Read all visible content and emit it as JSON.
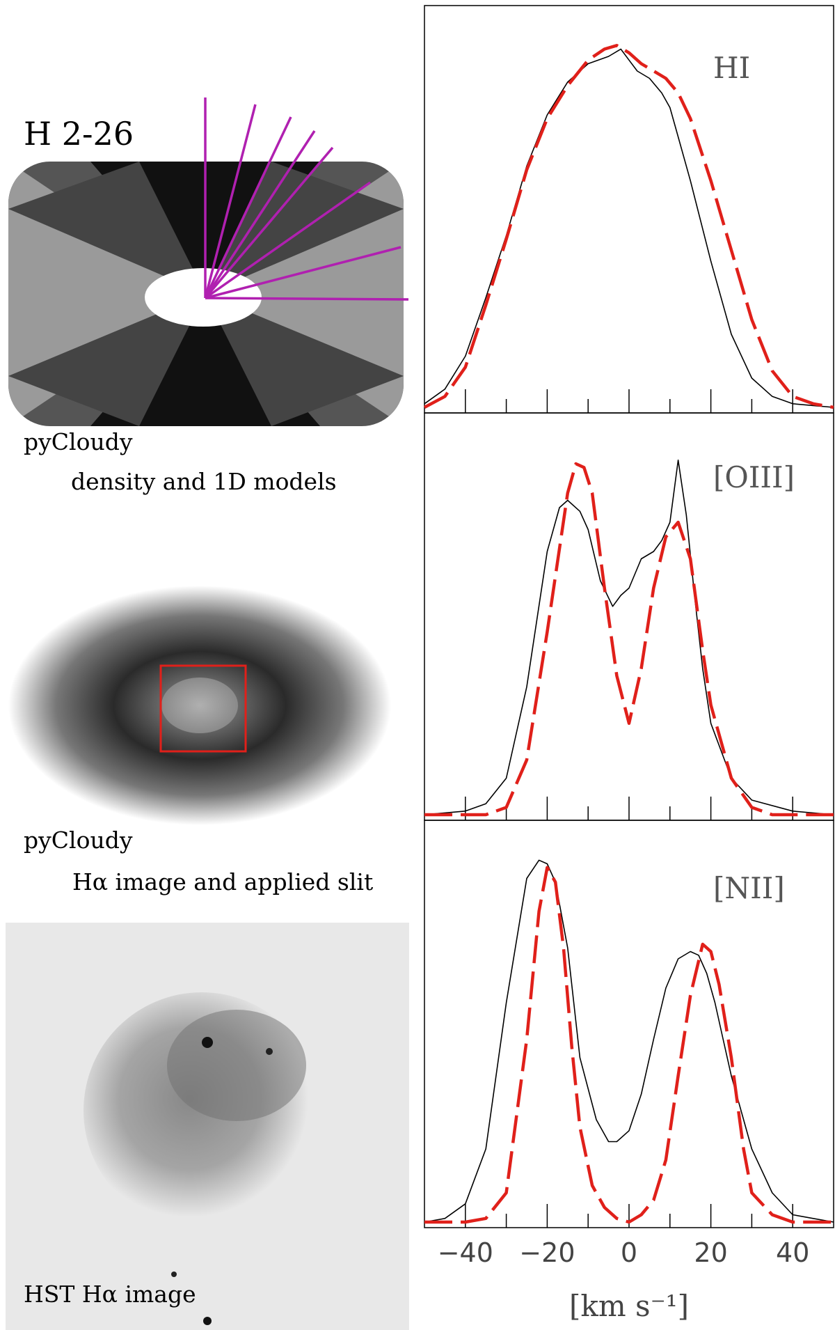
{
  "labels": {
    "title": "H 2-26",
    "density_caption_line1": "pyCloudy",
    "density_caption_line2": "density and 1D models",
    "halpha_caption_line1": "pyCloudy",
    "halpha_caption_line2": "Hα image and applied slit",
    "hst_caption": "HST Hα image"
  },
  "colors": {
    "observed": "#000000",
    "model": "#e0201a",
    "rays": "#b020b0",
    "slit": "#e0201a"
  },
  "chart_data": [
    {
      "type": "line",
      "title": "HI",
      "xlim": [
        -50,
        50
      ],
      "ylim": [
        0,
        1.0
      ],
      "series": [
        {
          "style": "observed-solid",
          "x": [
            -50,
            -45,
            -40,
            -35,
            -30,
            -25,
            -20,
            -15,
            -10,
            -5,
            -2,
            0,
            2,
            5,
            8,
            10,
            12,
            15,
            20,
            25,
            30,
            35,
            40,
            45,
            50
          ],
          "y": [
            0.01,
            0.05,
            0.14,
            0.3,
            0.47,
            0.66,
            0.8,
            0.89,
            0.94,
            0.96,
            0.98,
            0.95,
            0.92,
            0.9,
            0.86,
            0.82,
            0.74,
            0.62,
            0.4,
            0.2,
            0.08,
            0.03,
            0.01,
            0.005,
            0.0
          ]
        },
        {
          "style": "model-dashed",
          "x": [
            -50,
            -45,
            -40,
            -35,
            -30,
            -25,
            -20,
            -15,
            -10,
            -6,
            -3,
            0,
            3,
            6,
            9,
            12,
            15,
            20,
            25,
            30,
            35,
            40,
            45,
            50
          ],
          "y": [
            0.0,
            0.03,
            0.11,
            0.28,
            0.46,
            0.65,
            0.79,
            0.88,
            0.95,
            0.98,
            0.99,
            0.97,
            0.94,
            0.92,
            0.9,
            0.86,
            0.79,
            0.62,
            0.43,
            0.24,
            0.1,
            0.03,
            0.01,
            0.0
          ]
        }
      ]
    },
    {
      "type": "line",
      "title": "[OIII]",
      "xlim": [
        -50,
        50
      ],
      "ylim": [
        0,
        1.0
      ],
      "series": [
        {
          "style": "observed-solid",
          "x": [
            -50,
            -40,
            -35,
            -30,
            -25,
            -20,
            -17,
            -15,
            -12,
            -10,
            -7,
            -4,
            -2,
            0,
            3,
            6,
            8,
            10,
            12,
            14,
            16,
            18,
            20,
            25,
            30,
            40,
            50
          ],
          "y": [
            0.0,
            0.01,
            0.03,
            0.1,
            0.35,
            0.72,
            0.84,
            0.86,
            0.83,
            0.78,
            0.64,
            0.57,
            0.6,
            0.62,
            0.7,
            0.72,
            0.75,
            0.8,
            0.97,
            0.82,
            0.6,
            0.4,
            0.25,
            0.1,
            0.04,
            0.01,
            0.0
          ]
        },
        {
          "style": "model-dashed",
          "x": [
            -50,
            -35,
            -30,
            -25,
            -20,
            -15,
            -13,
            -11,
            -9,
            -6,
            -3,
            0,
            3,
            6,
            9,
            12,
            15,
            18,
            20,
            25,
            30,
            35,
            50
          ],
          "y": [
            0.0,
            0.0,
            0.02,
            0.15,
            0.5,
            0.88,
            0.96,
            0.95,
            0.88,
            0.62,
            0.38,
            0.25,
            0.4,
            0.62,
            0.76,
            0.8,
            0.7,
            0.45,
            0.3,
            0.1,
            0.02,
            0.0,
            0.0
          ]
        }
      ]
    },
    {
      "type": "line",
      "title": "[NII]",
      "xlim": [
        -50,
        50
      ],
      "ylim": [
        0,
        1.0
      ],
      "xlabel": "[km s⁻¹]",
      "xticks": [
        -40,
        -20,
        0,
        20,
        40
      ],
      "series": [
        {
          "style": "observed-solid",
          "x": [
            -50,
            -45,
            -40,
            -35,
            -30,
            -25,
            -22,
            -20,
            -18,
            -15,
            -12,
            -8,
            -5,
            -3,
            0,
            3,
            6,
            9,
            12,
            15,
            17,
            19,
            21,
            23,
            25,
            30,
            35,
            40,
            45,
            50
          ],
          "y": [
            0.0,
            0.01,
            0.05,
            0.2,
            0.6,
            0.94,
            0.99,
            0.98,
            0.93,
            0.75,
            0.45,
            0.28,
            0.22,
            0.22,
            0.25,
            0.35,
            0.5,
            0.64,
            0.72,
            0.74,
            0.73,
            0.68,
            0.6,
            0.5,
            0.4,
            0.2,
            0.08,
            0.02,
            0.01,
            0.0
          ]
        },
        {
          "style": "model-dashed",
          "x": [
            -50,
            -40,
            -35,
            -30,
            -25,
            -22,
            -20,
            -18,
            -16,
            -14,
            -12,
            -9,
            -6,
            -3,
            0,
            3,
            6,
            9,
            12,
            15,
            18,
            20,
            22,
            25,
            28,
            30,
            35,
            40,
            50
          ],
          "y": [
            0.0,
            0.0,
            0.01,
            0.08,
            0.5,
            0.85,
            0.97,
            0.93,
            0.75,
            0.48,
            0.26,
            0.1,
            0.04,
            0.01,
            0.0,
            0.02,
            0.06,
            0.17,
            0.4,
            0.62,
            0.76,
            0.74,
            0.65,
            0.45,
            0.2,
            0.08,
            0.02,
            0.0,
            0.0
          ]
        }
      ]
    }
  ]
}
